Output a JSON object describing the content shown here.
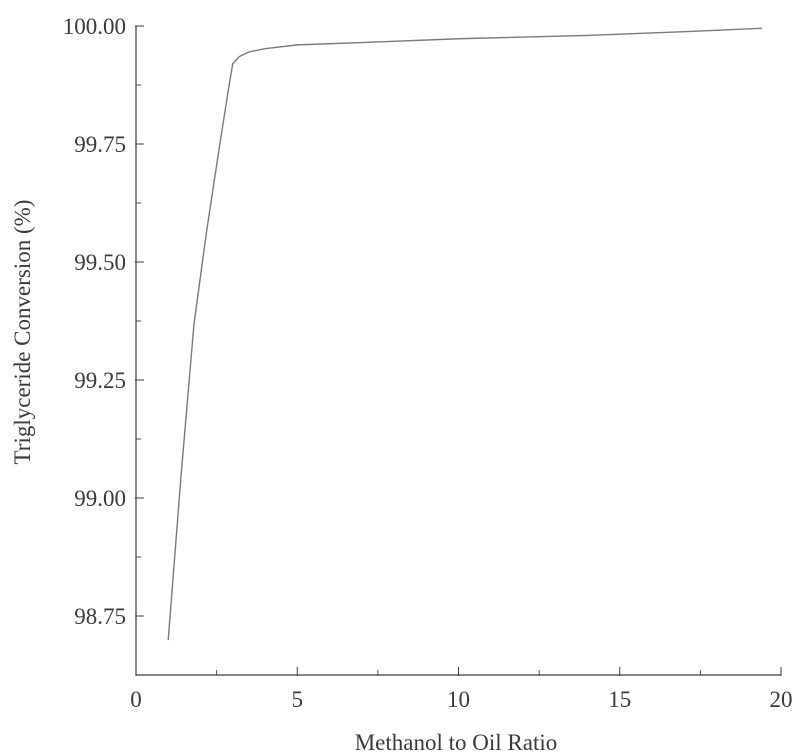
{
  "chart_data": {
    "type": "line",
    "title": "",
    "xlabel": "Methanol to Oil Ratio",
    "ylabel": "Triglyceride Conversion (%)",
    "xlim": [
      0,
      20
    ],
    "ylim": [
      98.625,
      100.0
    ],
    "x_ticks": [
      {
        "value": 0,
        "label": "0"
      },
      {
        "value": 5,
        "label": "5"
      },
      {
        "value": 10,
        "label": "10"
      },
      {
        "value": 15,
        "label": "15"
      },
      {
        "value": 20,
        "label": "20"
      }
    ],
    "x_minor_ticks": [
      2.5,
      7.5,
      12.5,
      17.5
    ],
    "y_ticks": [
      {
        "value": 98.75,
        "label": "98.75"
      },
      {
        "value": 99.0,
        "label": "99.00"
      },
      {
        "value": 99.25,
        "label": "99.25"
      },
      {
        "value": 99.5,
        "label": "99.50"
      },
      {
        "value": 99.75,
        "label": "99.75"
      },
      {
        "value": 100.0,
        "label": "100.00"
      }
    ],
    "y_minor_ticks": [
      98.625,
      98.875,
      99.125,
      99.375,
      99.625,
      99.875
    ],
    "grid": false,
    "legend": "none",
    "line_color": "#7a7a7a",
    "series": [
      {
        "x": [
          1.0,
          1.4,
          1.8,
          2.2,
          2.6,
          2.9,
          3.0,
          3.2,
          3.5,
          4.0,
          5.0,
          7.0,
          10.0,
          14.0,
          17.0,
          19.4
        ],
        "y": [
          98.7,
          99.05,
          99.37,
          99.57,
          99.75,
          99.88,
          99.92,
          99.935,
          99.945,
          99.952,
          99.96,
          99.965,
          99.973,
          99.98,
          99.988,
          99.995
        ]
      }
    ]
  }
}
